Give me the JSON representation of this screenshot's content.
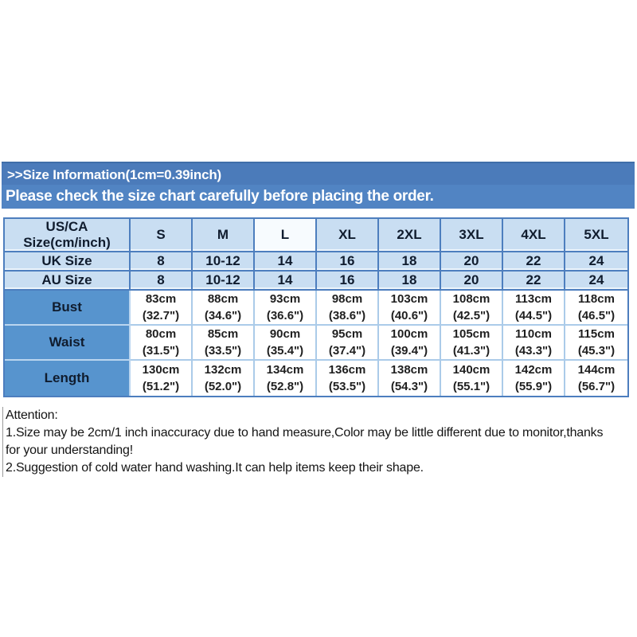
{
  "banner": {
    "title": ">>Size Information(1cm=0.39inch)",
    "subtitle": "Please check the size chart carefully before placing the order."
  },
  "size_table": {
    "corner_line1": "US/CA",
    "corner_line2": "Size(cm/inch)",
    "sizes": [
      "S",
      "M",
      "L",
      "XL",
      "2XL",
      "3XL",
      "4XL",
      "5XL"
    ],
    "highlight_size": "L",
    "uk_row": {
      "label": "UK Size",
      "values": [
        "8",
        "10-12",
        "14",
        "16",
        "18",
        "20",
        "22",
        "24"
      ]
    },
    "au_row": {
      "label": "AU Size",
      "values": [
        "8",
        "10-12",
        "14",
        "16",
        "18",
        "20",
        "22",
        "24"
      ]
    },
    "measure_rows": [
      {
        "label": "Bust",
        "cm": [
          "83cm",
          "88cm",
          "93cm",
          "98cm",
          "103cm",
          "108cm",
          "113cm",
          "118cm"
        ],
        "inch": [
          "(32.7\")",
          "(34.6\")",
          "(36.6\")",
          "(38.6\")",
          "(40.6\")",
          "(42.5\")",
          "(44.5\")",
          "(46.5\")"
        ]
      },
      {
        "label": "Waist",
        "cm": [
          "80cm",
          "85cm",
          "90cm",
          "95cm",
          "100cm",
          "105cm",
          "110cm",
          "115cm"
        ],
        "inch": [
          "(31.5\")",
          "(33.5\")",
          "(35.4\")",
          "(37.4\")",
          "(39.4\")",
          "(41.3\")",
          "(43.3\")",
          "(45.3\")"
        ]
      },
      {
        "label": "Length",
        "cm": [
          "130cm",
          "132cm",
          "134cm",
          "136cm",
          "138cm",
          "140cm",
          "142cm",
          "144cm"
        ],
        "inch": [
          "(51.2\")",
          "(52.0\")",
          "(52.8\")",
          "(53.5\")",
          "(54.3\")",
          "(55.1\")",
          "(55.9\")",
          "(56.7\")"
        ]
      }
    ]
  },
  "attention": {
    "lines": [
      "Attention:",
      "1.Size may be 2cm/1 inch inaccuracy due to hand measure,Color may be little different due to monitor,thanks",
      "for your understanding!",
      "2.Suggestion of cold water hand washing.It can help items keep their shape."
    ]
  },
  "colors": {
    "banner_top_blue": "#4b7bba",
    "banner_bottom_blue": "#5184c3",
    "table_grid_blue": "#4d7ebe",
    "light_cell_blue": "#c9def2",
    "label_cell_blue": "#5794ce",
    "measure_grid_blue": "#abcbe9",
    "header_text": "#101c2e",
    "label_text": "#1f3864",
    "banner_text": "#ffffff"
  }
}
